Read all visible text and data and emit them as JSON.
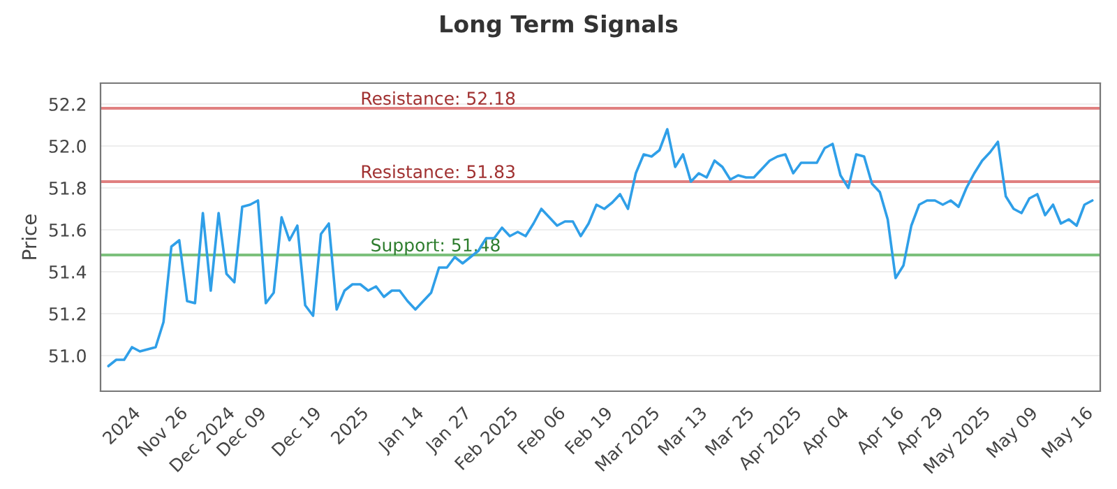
{
  "chart_data": {
    "type": "line",
    "title": "Long Term Signals",
    "ylabel": "Price",
    "categories": [
      null,
      null,
      null,
      "2024",
      null,
      null,
      null,
      null,
      null,
      "Nov 26",
      null,
      null,
      null,
      null,
      null,
      "Dec 2024",
      null,
      null,
      null,
      "Dec 09",
      null,
      null,
      null,
      null,
      null,
      null,
      "Dec 19",
      null,
      null,
      null,
      null,
      null,
      "2025",
      null,
      null,
      null,
      null,
      null,
      null,
      "Jan 14",
      null,
      null,
      null,
      null,
      null,
      "Jan 27",
      null,
      null,
      null,
      null,
      null,
      "Feb 2025",
      null,
      null,
      null,
      null,
      null,
      "Feb 06",
      null,
      null,
      null,
      null,
      null,
      "Feb 19",
      null,
      null,
      null,
      null,
      null,
      "Mar 2025",
      null,
      null,
      null,
      null,
      null,
      "Mar 13",
      null,
      null,
      null,
      null,
      null,
      "Mar 25",
      null,
      null,
      null,
      null,
      null,
      "Apr 2025",
      null,
      null,
      null,
      null,
      null,
      "Apr 04",
      null,
      null,
      null,
      null,
      null,
      null,
      "Apr 16",
      null,
      null,
      null,
      null,
      "Apr 29",
      null,
      null,
      null,
      null,
      null,
      "May 2025",
      null,
      null,
      null,
      null,
      null,
      "May 09",
      null,
      null,
      null,
      null,
      null,
      null,
      "May 16",
      null
    ],
    "series": [
      {
        "color": "#2f9fe8",
        "values": [
          50.95,
          50.98,
          50.98,
          51.04,
          51.02,
          51.03,
          51.04,
          51.16,
          51.52,
          51.55,
          51.26,
          51.25,
          51.68,
          51.31,
          51.68,
          51.39,
          51.35,
          51.71,
          51.72,
          51.74,
          51.25,
          51.3,
          51.66,
          51.55,
          51.62,
          51.24,
          51.19,
          51.58,
          51.63,
          51.22,
          51.31,
          51.34,
          51.34,
          51.31,
          51.33,
          51.28,
          51.31,
          51.31,
          51.26,
          51.22,
          51.26,
          51.3,
          51.42,
          51.42,
          51.47,
          51.44,
          51.47,
          51.5,
          51.56,
          51.56,
          51.61,
          51.57,
          51.59,
          51.57,
          51.63,
          51.7,
          51.66,
          51.62,
          51.64,
          51.64,
          51.57,
          51.63,
          51.72,
          51.7,
          51.73,
          51.77,
          51.7,
          51.87,
          51.96,
          51.95,
          51.98,
          52.08,
          51.9,
          51.96,
          51.83,
          51.87,
          51.85,
          51.93,
          51.9,
          51.84,
          51.86,
          51.85,
          51.85,
          51.89,
          51.93,
          51.95,
          51.96,
          51.87,
          51.92,
          51.92,
          51.92,
          51.99,
          52.01,
          51.86,
          51.8,
          51.96,
          51.95,
          51.82,
          51.78,
          51.65,
          51.37,
          51.43,
          51.62,
          51.72,
          51.74,
          51.74,
          51.72,
          51.74,
          51.71,
          51.8,
          51.87,
          51.93,
          51.97,
          52.02,
          51.76,
          51.7,
          51.68,
          51.75,
          51.77,
          51.67,
          51.72,
          51.63,
          51.65,
          51.62,
          51.72,
          51.74
        ]
      }
    ],
    "ylim": [
      50.83,
      52.3
    ],
    "yticks": [
      {
        "value": 51.0,
        "label": "51.0"
      },
      51.2,
      51.4,
      51.6,
      51.8,
      {
        "value": 52.0,
        "label": "52.0"
      },
      52.2
    ],
    "grid": "y",
    "legend": false,
    "marker": "none",
    "line_style": "solid",
    "ref_lines": [
      {
        "axis": "y",
        "value": 52.18,
        "label": "Resistance: 52.18",
        "color": "#e08080"
      },
      {
        "axis": "y",
        "value": 51.83,
        "label": "Resistance: 51.83",
        "color": "#e08080"
      },
      {
        "axis": "y",
        "value": 51.48,
        "label": "Support: 51.48",
        "color": "#7cc07c"
      }
    ]
  }
}
